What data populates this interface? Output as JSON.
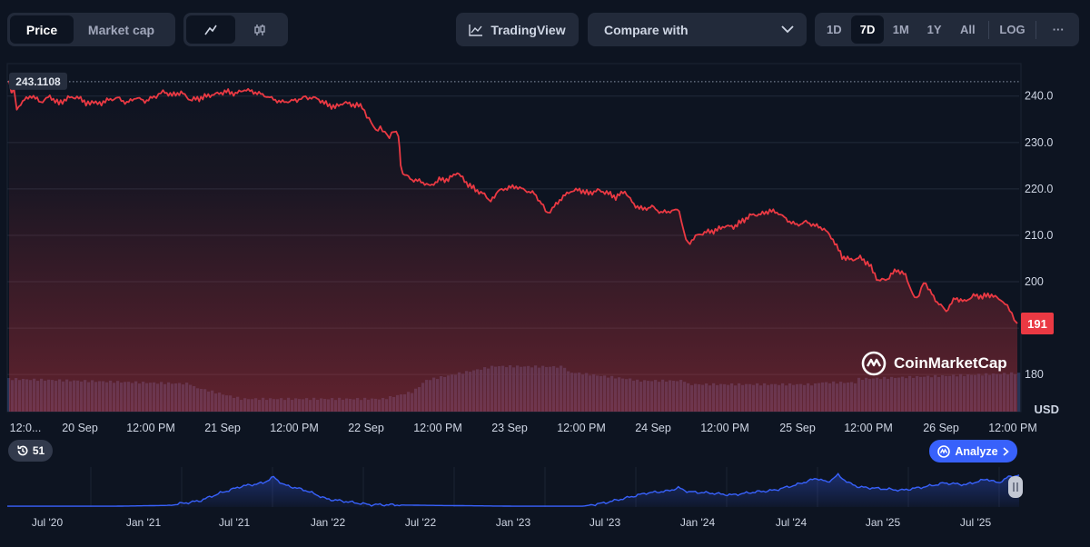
{
  "toolbar": {
    "type_tabs": [
      "Price",
      "Market cap"
    ],
    "tradingview_label": "TradingView",
    "compare_label": "Compare with",
    "ranges": [
      "1D",
      "7D",
      "1M",
      "1Y",
      "All"
    ],
    "log_label": "LOG",
    "more_label": "···"
  },
  "badges": {
    "count": "51",
    "analyze_label": "Analyze"
  },
  "watermark": "CoinMarketCap",
  "colors": {
    "price_line": "#ea3943",
    "volume": "#2c3b60",
    "navigator_line": "#3861fb",
    "accent": "#3861fb"
  },
  "chart_data": {
    "type": "line",
    "price_series_stops": [
      [
        0,
        243.1108
      ],
      [
        0.5,
        240.8
      ],
      [
        1,
        241.9
      ],
      [
        1.7,
        237.3
      ],
      [
        3,
        238.9
      ],
      [
        5,
        240.1
      ],
      [
        7,
        238.7
      ],
      [
        9,
        239.9
      ],
      [
        11,
        238.4
      ],
      [
        13,
        239.6
      ],
      [
        15,
        239.8
      ],
      [
        17,
        238.6
      ],
      [
        20,
        238.4
      ],
      [
        22,
        239.2
      ],
      [
        24,
        239.6
      ],
      [
        26,
        238.5
      ],
      [
        28,
        239.7
      ],
      [
        30,
        238.9
      ],
      [
        32,
        239.8
      ],
      [
        33,
        240.1
      ],
      [
        34,
        241.0
      ],
      [
        36,
        240.2
      ],
      [
        38,
        240.8
      ],
      [
        40,
        239.2
      ],
      [
        42,
        239.5
      ],
      [
        44,
        240.1
      ],
      [
        46,
        240.5
      ],
      [
        48,
        241.0
      ],
      [
        50,
        240.5
      ],
      [
        52,
        241.4
      ],
      [
        54,
        240.9
      ],
      [
        56,
        240.3
      ],
      [
        58,
        239.5
      ],
      [
        60,
        238.7
      ],
      [
        62,
        238.9
      ],
      [
        64,
        239.2
      ],
      [
        65,
        240.0
      ],
      [
        66,
        239.7
      ],
      [
        68,
        239.5
      ],
      [
        70,
        238.3
      ],
      [
        72,
        237.6
      ],
      [
        74,
        238.6
      ],
      [
        76,
        238.1
      ],
      [
        78,
        237.8
      ],
      [
        79,
        235.7
      ],
      [
        80,
        234.2
      ],
      [
        81,
        232.3
      ],
      [
        82,
        233.0
      ],
      [
        83,
        232.1
      ],
      [
        84,
        231.0
      ],
      [
        85,
        232.5
      ],
      [
        86,
        231.5
      ],
      [
        86.5,
        225.2
      ],
      [
        87,
        223.3
      ],
      [
        89,
        222.0
      ],
      [
        91,
        221.6
      ],
      [
        93,
        220.6
      ],
      [
        95,
        222.0
      ],
      [
        97,
        222.0
      ],
      [
        99,
        223.6
      ],
      [
        101,
        221.3
      ],
      [
        103,
        219.8
      ],
      [
        105,
        218.8
      ],
      [
        106,
        217.0
      ],
      [
        108,
        219.5
      ],
      [
        110,
        220.2
      ],
      [
        112,
        220.5
      ],
      [
        114,
        219.7
      ],
      [
        116,
        219.0
      ],
      [
        118,
        216.3
      ],
      [
        119,
        214.5
      ],
      [
        120,
        215.7
      ],
      [
        122,
        218.0
      ],
      [
        124,
        219.5
      ],
      [
        126,
        219.8
      ],
      [
        128,
        219.0
      ],
      [
        130,
        219.7
      ],
      [
        132,
        219.2
      ],
      [
        134,
        218.2
      ],
      [
        136,
        219.5
      ],
      [
        138,
        216.6
      ],
      [
        140,
        215.6
      ],
      [
        142,
        216.2
      ],
      [
        144,
        214.9
      ],
      [
        146,
        215.2
      ],
      [
        148,
        215.5
      ],
      [
        149,
        211.0
      ],
      [
        150,
        208.2
      ],
      [
        152,
        210.0
      ],
      [
        154,
        210.7
      ],
      [
        156,
        211.0
      ],
      [
        158,
        212.0
      ],
      [
        160,
        211.8
      ],
      [
        162,
        213.1
      ],
      [
        164,
        214.4
      ],
      [
        166,
        214.5
      ],
      [
        168,
        215.3
      ],
      [
        170,
        214.8
      ],
      [
        172,
        213.2
      ],
      [
        174,
        212.2
      ],
      [
        176,
        212.9
      ],
      [
        178,
        212.1
      ],
      [
        180,
        211.4
      ],
      [
        182,
        209.1
      ],
      [
        184,
        205.4
      ],
      [
        186,
        204.7
      ],
      [
        188,
        205.2
      ],
      [
        190,
        203.7
      ],
      [
        192,
        200.2
      ],
      [
        194,
        200.6
      ],
      [
        196,
        202.6
      ],
      [
        198,
        201.4
      ],
      [
        200,
        196.3
      ],
      [
        201,
        196.9
      ],
      [
        202,
        199.8
      ],
      [
        203,
        198.5
      ],
      [
        205,
        195.6
      ],
      [
        207,
        193.7
      ],
      [
        209,
        196.5
      ],
      [
        211,
        195.7
      ],
      [
        213,
        197.0
      ],
      [
        215,
        196.8
      ],
      [
        217,
        197.2
      ],
      [
        219,
        196.0
      ],
      [
        220,
        195.5
      ],
      [
        221,
        194.1
      ],
      [
        222,
        191.7
      ],
      [
        222.7,
        191.0
      ]
    ],
    "navigator_series_stops": [
      [
        0,
        0.02
      ],
      [
        10,
        0.02
      ],
      [
        15,
        0.04
      ],
      [
        18,
        0.15
      ],
      [
        20,
        0.35
      ],
      [
        22,
        0.52
      ],
      [
        24,
        0.6
      ],
      [
        25,
        0.75
      ],
      [
        26,
        0.55
      ],
      [
        28,
        0.42
      ],
      [
        30,
        0.2
      ],
      [
        34,
        0.06
      ],
      [
        40,
        0.04
      ],
      [
        48,
        0.02
      ],
      [
        54,
        0.02
      ],
      [
        56,
        0.1
      ],
      [
        58,
        0.22
      ],
      [
        60,
        0.35
      ],
      [
        62,
        0.4
      ],
      [
        63,
        0.48
      ],
      [
        64,
        0.38
      ],
      [
        66,
        0.35
      ],
      [
        68,
        0.3
      ],
      [
        70,
        0.37
      ],
      [
        72,
        0.42
      ],
      [
        74,
        0.55
      ],
      [
        76,
        0.72
      ],
      [
        77,
        0.62
      ],
      [
        78,
        0.8
      ],
      [
        79,
        0.6
      ],
      [
        80,
        0.5
      ],
      [
        82,
        0.46
      ],
      [
        84,
        0.42
      ],
      [
        86,
        0.5
      ],
      [
        88,
        0.6
      ],
      [
        90,
        0.56
      ],
      [
        92,
        0.7
      ],
      [
        93,
        0.6
      ],
      [
        94,
        0.75
      ],
      [
        95,
        0.8
      ]
    ],
    "title": "",
    "xlabel": "",
    "ylabel": "USD",
    "ylim": [
      172,
      247
    ],
    "y_ticks": [
      180.0,
      190.0,
      200,
      210.0,
      220.0,
      230.0,
      240.0
    ],
    "y_tick_labels": [
      "180",
      "",
      "200",
      "210.0",
      "220.0",
      "230.0",
      "240.0"
    ],
    "x_tick_labels": [
      "12:0...",
      "20 Sep",
      "12:00 PM",
      "21 Sep",
      "12:00 PM",
      "22 Sep",
      "12:00 PM",
      "23 Sep",
      "12:00 PM",
      "24 Sep",
      "12:00 PM",
      "25 Sep",
      "12:00 PM",
      "26 Sep",
      "12:00 PM"
    ],
    "nav_x_tick_labels": [
      "Jul '20",
      "Jan '21",
      "Jul '21",
      "Jan '22",
      "Jul '22",
      "Jan '23",
      "Jul '23",
      "Jan '24",
      "Jul '24",
      "Jan '25",
      "Jul '25"
    ],
    "high_label": "243.1108",
    "current_label": "191",
    "grid": true
  }
}
